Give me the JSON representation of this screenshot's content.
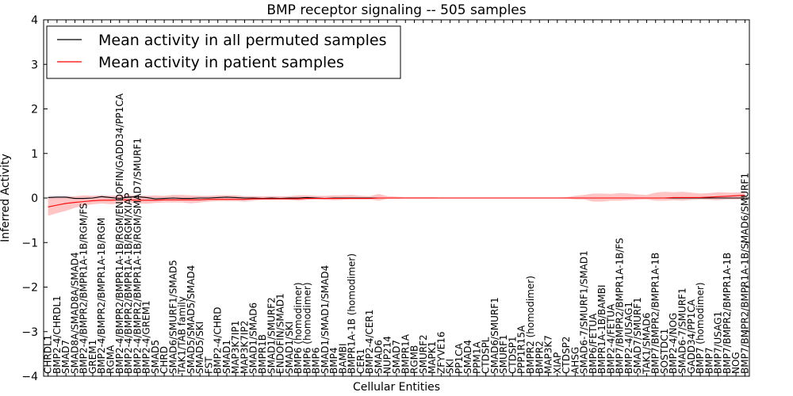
{
  "chart_data": {
    "type": "line",
    "title": "BMP receptor signaling -- 505 samples",
    "xlabel": "Cellular Entities",
    "ylabel": "Inferred Activity",
    "ylim": [
      -4,
      4
    ],
    "yticks": [
      -4,
      -3,
      -2,
      -1,
      0,
      1,
      2,
      3,
      4
    ],
    "ytick_labels": [
      "−4",
      "−3",
      "−2",
      "−1",
      "0",
      "1",
      "2",
      "3",
      "4"
    ],
    "legend_location": "top-left",
    "categories": [
      "CHRDL1",
      "BMP2-4/CHRDL1",
      "SMAD7",
      "SMAD8A/SMAD8A/SMAD4",
      "BMP2-4/BMPR2/BMPR1A-1B/RGM/FS",
      "GREM1",
      "BMP2-4/BMPR2/BMPR1A-1B/RGM",
      "RGMA",
      "BMP2-4/BMPR2/BMPR1A-1B/RGM/ENDOFIN/GADD34/PP1CA",
      "BMP2-4/BMPR2/BMPR1A-1B/RGM/XIAP",
      "BMP2-4/BMPR2/BMPR1A-1B/RGM/SMAD7/SMURF1",
      "BMP2-4/GREM1",
      "SMAD5",
      "CHRD",
      "SMAD6/SMURF1/SMAD5",
      "TAK1/TAB family",
      "SMAD5/SMAD5/SMAD4",
      "SMAD5/SKI",
      "FST",
      "BMP2-4/CHRD",
      "SMAD1",
      "MAP3K7IP1",
      "MAP3K7IP2",
      "SMAD1/SMAD6",
      "BMPR1B",
      "SMAD1/SMURF2",
      "ENDOFIN/SMAD1",
      "SMAD1/SKI",
      "BMP6 (homodimer)",
      "BMP6 (homodimer)",
      "BMP6",
      "SMAD1/SMAD1/SMAD4",
      "BMP4",
      "BAMBI",
      "BMPR1A-1B (homodimer)",
      "CER1",
      "BMP2-4/CER1",
      "SMAD6",
      "NUP214",
      "SMAD7",
      "BMPR1A",
      "RGMB",
      "SMURF2",
      "MAPK1",
      "ZFYVE16",
      "SKI",
      "PP1CA",
      "SMAD4",
      "PPM1A",
      "CTDSPL",
      "SMAD6/SMURF1",
      "SMURF1",
      "CTDSP1",
      "PPP1R15A",
      "BMPR2 (homodimer)",
      "BMPR2",
      "MAP3K7",
      "XIAP",
      "CTDSP2",
      "AHSG",
      "SMAD6-7/SMURF1/SMAD1",
      "BMP6/FETUA",
      "BMPR1A-1B/BAMBI",
      "BMP2-4/FETUA",
      "BMP7/BMPR2/BMPR1A-1B/FS",
      "BMP2-4/USAG1",
      "SMAD7/SMURF1",
      "TAK1/SMAD6",
      "BMP7/BMPR2/BMPR1A-1B",
      "SOSTDC1",
      "BMP2-4/NOG",
      "SMAD6-7/SMURF1",
      "GADD34/PP1CA",
      "BMP7 (homodimer)",
      "BMP7",
      "BMP7/USAG1",
      "BMP7/BMPR2/BMPR1A-1B",
      "NOG",
      "BMP7/BMPR2/BMPR1A-1B/SMAD6/SMURF1"
    ],
    "series": [
      {
        "name": "Mean activity in all permuted samples",
        "color": "#000000",
        "band_color": "#d8d8e8",
        "values": [
          0.01,
          0.02,
          0.02,
          -0.01,
          -0.01,
          0.0,
          0.03,
          0.01,
          -0.01,
          0.02,
          0.03,
          0.01,
          -0.02,
          -0.01,
          0.0,
          -0.01,
          -0.01,
          0.0,
          0.0,
          0.01,
          0.02,
          0.01,
          0.0,
          0.0,
          -0.01,
          0.0,
          -0.01,
          0.0,
          0.0,
          0.01,
          0.0,
          -0.01,
          0.0,
          0.0,
          0.0,
          0.0,
          0.0,
          0.0,
          0.0,
          0.0,
          0.0,
          0.0,
          0.0,
          0.0,
          0.0,
          0.0,
          0.0,
          0.0,
          0.0,
          0.0,
          0.0,
          0.0,
          0.0,
          0.0,
          0.0,
          0.0,
          0.0,
          0.0,
          0.0,
          0.0,
          0.0,
          0.0,
          0.0,
          0.0,
          0.0,
          0.0,
          0.0,
          0.0,
          0.0,
          0.0,
          0.0,
          0.0,
          0.0,
          0.0,
          0.0,
          0.0,
          0.0,
          0.0,
          0.0
        ],
        "lower": [
          -0.03,
          -0.02,
          -0.02,
          -0.04,
          -0.04,
          -0.03,
          -0.02,
          -0.03,
          -0.04,
          -0.02,
          -0.02,
          -0.03,
          -0.05,
          -0.04,
          -0.03,
          -0.04,
          -0.04,
          -0.03,
          -0.03,
          -0.03,
          -0.02,
          -0.03,
          -0.03,
          -0.03,
          -0.04,
          -0.03,
          -0.04,
          -0.03,
          -0.03,
          -0.03,
          -0.03,
          -0.04,
          -0.03,
          -0.02,
          -0.02,
          -0.02,
          -0.02,
          -0.02,
          -0.01,
          -0.01,
          -0.01,
          -0.01,
          -0.01,
          -0.01,
          -0.01,
          -0.01,
          -0.01,
          -0.01,
          -0.01,
          -0.01,
          -0.01,
          -0.01,
          -0.01,
          -0.01,
          -0.01,
          -0.01,
          -0.01,
          -0.01,
          -0.01,
          -0.01,
          -0.01,
          -0.01,
          -0.01,
          -0.01,
          -0.01,
          -0.01,
          -0.01,
          -0.01,
          -0.01,
          -0.01,
          -0.01,
          -0.01,
          -0.01,
          -0.01,
          -0.01,
          -0.01,
          -0.01,
          -0.01,
          -0.01
        ],
        "upper": [
          0.05,
          0.06,
          0.06,
          0.03,
          0.03,
          0.04,
          0.07,
          0.05,
          0.03,
          0.06,
          0.07,
          0.05,
          0.02,
          0.03,
          0.04,
          0.03,
          0.03,
          0.04,
          0.04,
          0.05,
          0.06,
          0.05,
          0.04,
          0.04,
          0.03,
          0.04,
          0.03,
          0.04,
          0.04,
          0.05,
          0.04,
          0.03,
          0.04,
          0.02,
          0.02,
          0.02,
          0.02,
          0.02,
          0.01,
          0.01,
          0.01,
          0.01,
          0.01,
          0.01,
          0.01,
          0.01,
          0.01,
          0.01,
          0.01,
          0.01,
          0.01,
          0.01,
          0.01,
          0.01,
          0.01,
          0.01,
          0.01,
          0.01,
          0.01,
          0.01,
          0.01,
          0.01,
          0.01,
          0.01,
          0.01,
          0.01,
          0.01,
          0.01,
          0.01,
          0.01,
          0.01,
          0.01,
          0.01,
          0.01,
          0.01,
          0.01,
          0.01,
          0.01,
          0.01
        ]
      },
      {
        "name": "Mean activity in patient samples",
        "color": "#ff0000",
        "band_color": "#ffb0b0",
        "values": [
          -0.2,
          -0.16,
          -0.12,
          -0.1,
          -0.08,
          -0.06,
          -0.05,
          -0.05,
          -0.04,
          -0.04,
          -0.05,
          -0.05,
          -0.05,
          -0.04,
          -0.04,
          -0.04,
          -0.04,
          -0.04,
          -0.03,
          -0.03,
          -0.03,
          -0.03,
          -0.03,
          -0.02,
          -0.02,
          -0.02,
          -0.02,
          -0.02,
          -0.02,
          -0.01,
          -0.01,
          -0.01,
          -0.01,
          -0.01,
          -0.01,
          -0.01,
          -0.01,
          0.0,
          0.0,
          0.0,
          0.0,
          0.0,
          0.0,
          0.0,
          0.0,
          0.0,
          0.0,
          0.0,
          0.0,
          0.0,
          0.0,
          0.0,
          0.0,
          0.0,
          0.0,
          0.0,
          0.0,
          0.0,
          0.0,
          0.0,
          0.0,
          0.0,
          0.0,
          0.0,
          0.0,
          0.0,
          0.0,
          0.0,
          0.0,
          0.0,
          0.01,
          0.01,
          0.01,
          0.01,
          0.02,
          0.03,
          0.04,
          0.05,
          0.06
        ],
        "lower": [
          -0.4,
          -0.34,
          -0.29,
          -0.22,
          -0.17,
          -0.14,
          -0.12,
          -0.14,
          -0.12,
          -0.1,
          -0.12,
          -0.13,
          -0.11,
          -0.1,
          -0.1,
          -0.1,
          -0.12,
          -0.1,
          -0.08,
          -0.07,
          -0.07,
          -0.07,
          -0.08,
          -0.06,
          -0.04,
          -0.04,
          -0.03,
          -0.04,
          -0.06,
          -0.04,
          -0.03,
          -0.04,
          -0.05,
          -0.04,
          -0.03,
          -0.03,
          -0.03,
          -0.06,
          -0.02,
          -0.02,
          -0.01,
          -0.01,
          -0.01,
          -0.01,
          -0.01,
          -0.01,
          -0.01,
          -0.01,
          -0.01,
          -0.01,
          -0.01,
          -0.01,
          -0.01,
          -0.01,
          -0.01,
          -0.01,
          -0.01,
          -0.01,
          -0.01,
          -0.03,
          -0.03,
          -0.08,
          -0.08,
          -0.06,
          -0.06,
          -0.05,
          -0.04,
          -0.03,
          -0.06,
          -0.06,
          -0.05,
          -0.06,
          -0.04,
          -0.03,
          -0.04,
          -0.05,
          -0.03,
          -0.03,
          -0.02
        ],
        "upper": [
          0.02,
          0.02,
          0.03,
          0.04,
          0.06,
          0.05,
          0.06,
          0.05,
          0.06,
          0.07,
          0.05,
          0.05,
          0.06,
          0.05,
          0.07,
          0.07,
          0.06,
          0.05,
          0.05,
          0.06,
          0.06,
          0.06,
          0.04,
          0.04,
          0.04,
          0.04,
          0.04,
          0.04,
          0.06,
          0.06,
          0.05,
          0.05,
          0.06,
          0.06,
          0.07,
          0.05,
          0.04,
          0.09,
          0.04,
          0.03,
          0.02,
          0.02,
          0.02,
          0.02,
          0.01,
          0.01,
          0.01,
          0.01,
          0.01,
          0.01,
          0.01,
          0.01,
          0.01,
          0.01,
          0.01,
          0.01,
          0.01,
          0.01,
          0.02,
          0.05,
          0.07,
          0.1,
          0.1,
          0.09,
          0.11,
          0.1,
          0.08,
          0.07,
          0.12,
          0.14,
          0.13,
          0.14,
          0.12,
          0.1,
          0.11,
          0.13,
          0.12,
          0.12,
          0.13
        ]
      }
    ]
  }
}
